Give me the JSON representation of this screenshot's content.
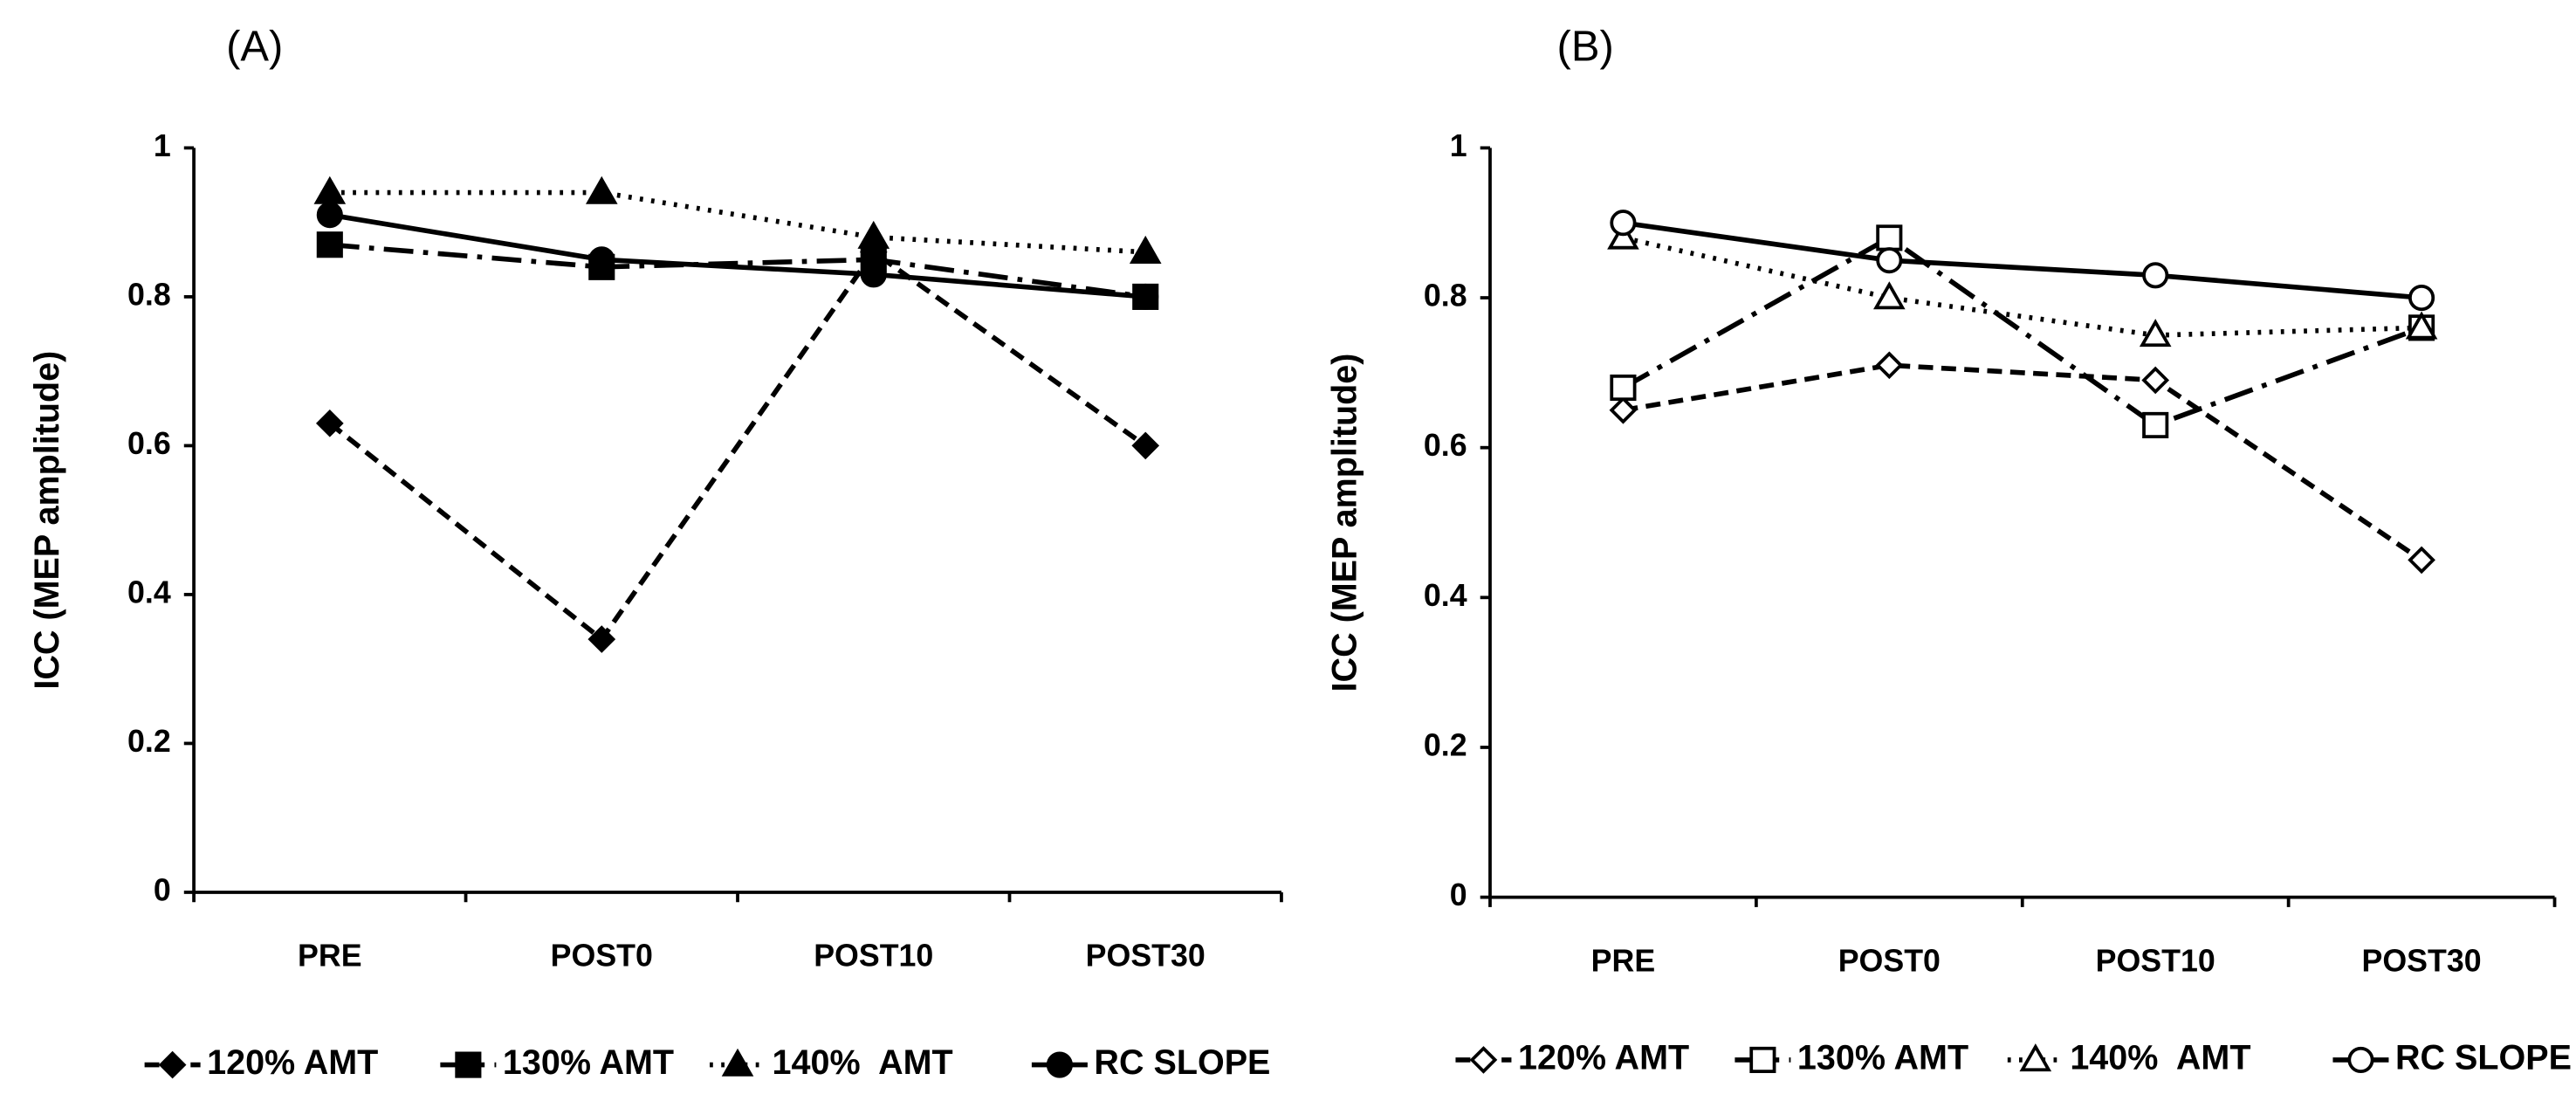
{
  "chart_data": [
    {
      "type": "line",
      "panel_label": "(A)",
      "y_label": "ICC (MEP amplitude)",
      "categories": [
        "PRE",
        "POST0",
        "POST10",
        "POST30"
      ],
      "ylim": [
        0,
        1
      ],
      "yticks": [
        0,
        0.2,
        0.4,
        0.6,
        0.8,
        1
      ],
      "series": [
        {
          "name": "120% AMT",
          "color": "#000000",
          "marker": "diamond",
          "filled": true,
          "dash": "dashed",
          "values": [
            0.63,
            0.34,
            0.86,
            0.6
          ]
        },
        {
          "name": "130% AMT",
          "color": "#000000",
          "marker": "square",
          "filled": true,
          "dash": "dashdot",
          "values": [
            0.87,
            0.84,
            0.85,
            0.8
          ]
        },
        {
          "name": "140%  AMT",
          "color": "#000000",
          "marker": "triangle",
          "filled": true,
          "dash": "dotted",
          "values": [
            0.94,
            0.94,
            0.88,
            0.86
          ]
        },
        {
          "name": "RC SLOPE",
          "color": "#000000",
          "marker": "circle",
          "filled": true,
          "dash": "solid",
          "values": [
            0.91,
            0.85,
            0.83,
            0.8
          ]
        }
      ]
    },
    {
      "type": "line",
      "panel_label": "(B)",
      "y_label": "ICC (MEP amplitude)",
      "categories": [
        "PRE",
        "POST0",
        "POST10",
        "POST30"
      ],
      "ylim": [
        0,
        1
      ],
      "yticks": [
        0,
        0.2,
        0.4,
        0.6,
        0.8,
        1
      ],
      "series": [
        {
          "name": "120% AMT",
          "color": "#000000",
          "marker": "diamond",
          "filled": false,
          "dash": "dashed",
          "values": [
            0.65,
            0.71,
            0.69,
            0.45
          ]
        },
        {
          "name": "130% AMT",
          "color": "#000000",
          "marker": "square",
          "filled": false,
          "dash": "dashdot",
          "values": [
            0.68,
            0.88,
            0.63,
            0.76
          ]
        },
        {
          "name": "140%  AMT",
          "color": "#000000",
          "marker": "triangle",
          "filled": false,
          "dash": "dotted",
          "values": [
            0.88,
            0.8,
            0.75,
            0.76
          ]
        },
        {
          "name": "RC SLOPE",
          "color": "#000000",
          "marker": "circle",
          "filled": false,
          "dash": "solid",
          "values": [
            0.9,
            0.85,
            0.83,
            0.8
          ]
        }
      ]
    }
  ]
}
